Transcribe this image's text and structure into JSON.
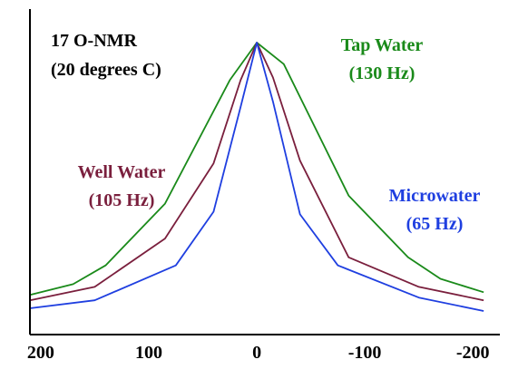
{
  "chart_data": {
    "type": "line",
    "title_lines": [
      "17 O-NMR",
      "(20 degrees C)"
    ],
    "xlabel": "",
    "ylabel": "",
    "xlim": [
      210,
      -225
    ],
    "ylim": [
      0,
      1
    ],
    "x_ticks": [
      200,
      100,
      0,
      -100,
      -200
    ],
    "x_tick_labels": [
      "200",
      "100",
      "0",
      "-100",
      "-200"
    ],
    "grid": false,
    "series": [
      {
        "name": "Tap Water",
        "width_label": "(130 Hz)",
        "color": "#1a8a1a",
        "x": [
          210,
          170,
          140,
          85,
          25,
          0,
          -25,
          -85,
          -140,
          -170,
          -210
        ],
        "y": [
          0.06,
          0.1,
          0.17,
          0.4,
          0.86,
          1.0,
          0.92,
          0.43,
          0.2,
          0.12,
          0.07
        ]
      },
      {
        "name": "Well Water",
        "width_label": "(105 Hz)",
        "color": "#7a1f3d",
        "x": [
          210,
          150,
          85,
          40,
          15,
          0,
          -15,
          -40,
          -85,
          -150,
          -210
        ],
        "y": [
          0.04,
          0.09,
          0.27,
          0.55,
          0.86,
          1.0,
          0.87,
          0.56,
          0.2,
          0.09,
          0.04
        ]
      },
      {
        "name": "Microwater",
        "width_label": "(65 Hz)",
        "color": "#1f3fe0",
        "x": [
          210,
          150,
          75,
          40,
          15,
          0,
          -15,
          -40,
          -75,
          -150,
          -210
        ],
        "y": [
          0.01,
          0.04,
          0.17,
          0.37,
          0.76,
          1.0,
          0.78,
          0.36,
          0.17,
          0.05,
          0.0
        ]
      }
    ],
    "colors": {
      "axis": "#000000",
      "background": "#ffffff",
      "title": "#000000"
    }
  }
}
